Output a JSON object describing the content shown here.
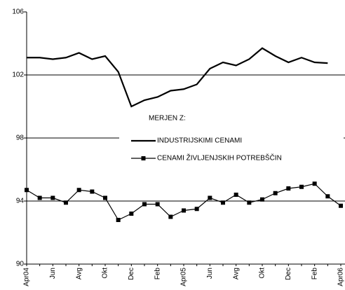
{
  "chart_data": {
    "type": "line",
    "legend_title": "MERJEN Z:",
    "categories": [
      "Apr04",
      null,
      "Jun",
      null,
      "Avg",
      null,
      "Okt",
      null,
      "Dec",
      null,
      "Feb",
      null,
      "Apr05",
      null,
      "Jun",
      null,
      "Avg",
      null,
      "Okt",
      null,
      "Dec",
      null,
      "Feb",
      null,
      "Apr06"
    ],
    "series": [
      {
        "name": "INDUSTRIJSKIMI CENAMI",
        "color": "#000000",
        "marker": false,
        "values": [
          103.1,
          103.1,
          103.0,
          103.1,
          103.4,
          103.0,
          103.2,
          102.2,
          100.0,
          100.4,
          100.6,
          101.0,
          101.1,
          101.4,
          102.4,
          102.8,
          102.6,
          103.0,
          103.7,
          103.2,
          102.8,
          103.1,
          102.8,
          102.75,
          null
        ]
      },
      {
        "name": "CENAMI ŽIVLJENJSKIH POTREBŠČIN",
        "color": "#000000",
        "marker": true,
        "values": [
          94.7,
          94.2,
          94.2,
          93.9,
          94.7,
          94.6,
          94.2,
          92.8,
          93.2,
          93.8,
          93.8,
          93.0,
          93.4,
          93.5,
          94.2,
          93.9,
          94.4,
          93.9,
          94.1,
          94.5,
          94.8,
          94.9,
          95.1,
          94.3,
          93.7
        ]
      }
    ],
    "ylim": [
      90,
      106
    ],
    "yticks": [
      90,
      94,
      98,
      102,
      106
    ],
    "grid": true
  }
}
